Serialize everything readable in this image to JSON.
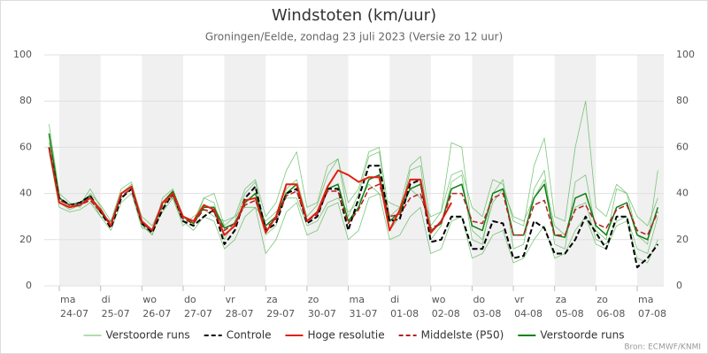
{
  "chart_data": {
    "type": "line",
    "title": "Windstoten (km/uur)",
    "subtitle": "Groningen/Eelde, zondag 23 juli 2023 (Versie zo 12 uur)",
    "source": "Bron: ECMWF/KNMI",
    "ylim": [
      0,
      100
    ],
    "yticks": [
      0,
      20,
      40,
      60,
      80,
      100
    ],
    "grid": true,
    "right_axis": true,
    "xlim": [
      0.635,
      15.643
    ],
    "xticks": [
      {
        "value": 1,
        "label": "ma\n24-07"
      },
      {
        "value": 2,
        "label": "di\n25-07"
      },
      {
        "value": 3,
        "label": "wo\n26-07"
      },
      {
        "value": 4,
        "label": "do\n27-07"
      },
      {
        "value": 5,
        "label": "vr\n28-07"
      },
      {
        "value": 6,
        "label": "za\n29-07"
      },
      {
        "value": 7,
        "label": "zo\n30-07"
      },
      {
        "value": 8,
        "label": "ma\n31-07"
      },
      {
        "value": 9,
        "label": "di\n01-08"
      },
      {
        "value": 10,
        "label": "wo\n02-08"
      },
      {
        "value": 11,
        "label": "do\n03-08"
      },
      {
        "value": 12,
        "label": "vr\n04-08"
      },
      {
        "value": 13,
        "label": "za\n05-08"
      },
      {
        "value": 14,
        "label": "zo\n06-08"
      },
      {
        "value": 15,
        "label": "ma\n07-08"
      }
    ],
    "x": [
      0.75,
      1,
      1.25,
      1.5,
      1.75,
      2,
      2.25,
      2.5,
      2.75,
      3,
      3.25,
      3.5,
      3.75,
      4,
      4.25,
      4.5,
      4.75,
      5,
      5.25,
      5.5,
      5.75,
      6,
      6.25,
      6.5,
      6.75,
      7,
      7.25,
      7.5,
      7.75,
      8,
      8.25,
      8.5,
      8.75,
      9,
      9.25,
      9.5,
      9.75,
      10,
      10.25,
      10.5,
      10.75,
      11,
      11.25,
      11.5,
      11.75,
      12,
      12.25,
      12.5,
      12.75,
      13,
      13.25,
      13.5,
      13.75,
      14,
      14.25,
      14.5,
      14.75,
      15,
      15.25,
      15.5
    ],
    "series": [
      {
        "name": "Verstoorde runs",
        "color": "#5cb85c",
        "width": 0.8,
        "dash": false,
        "runs": [
          [
            70,
            40,
            36,
            34,
            40,
            35,
            28,
            42,
            45,
            28,
            22,
            38,
            42,
            30,
            26,
            38,
            36,
            20,
            28,
            40,
            45,
            22,
            26,
            42,
            46,
            30,
            35,
            48,
            55,
            30,
            40,
            56,
            58,
            24,
            30,
            50,
            52,
            20,
            26,
            45,
            48,
            20,
            18,
            40,
            46,
            16,
            18,
            42,
            50,
            18,
            16,
            45,
            48,
            24,
            20,
            42,
            40,
            22,
            18,
            50
          ],
          [
            65,
            38,
            34,
            36,
            38,
            30,
            24,
            36,
            40,
            25,
            24,
            32,
            38,
            26,
            30,
            33,
            30,
            28,
            30,
            34,
            34,
            28,
            32,
            38,
            38,
            26,
            28,
            36,
            38,
            32,
            36,
            44,
            40,
            36,
            34,
            42,
            38,
            30,
            32,
            48,
            50,
            34,
            30,
            46,
            44,
            28,
            26,
            52,
            64,
            30,
            28,
            60,
            80,
            34,
            30,
            44,
            40,
            30,
            26,
            38
          ],
          [
            58,
            34,
            32,
            33,
            36,
            30,
            28,
            40,
            44,
            30,
            26,
            36,
            38,
            28,
            24,
            30,
            28,
            16,
            20,
            30,
            34,
            14,
            20,
            32,
            36,
            22,
            24,
            34,
            36,
            20,
            24,
            38,
            40,
            20,
            22,
            30,
            34,
            14,
            16,
            28,
            30,
            12,
            14,
            22,
            24,
            10,
            12,
            20,
            26,
            12,
            14,
            24,
            30,
            18,
            16,
            26,
            28,
            12,
            10,
            20
          ],
          [
            62,
            36,
            33,
            35,
            42,
            34,
            26,
            38,
            42,
            26,
            22,
            34,
            40,
            30,
            28,
            38,
            40,
            26,
            30,
            42,
            46,
            30,
            36,
            50,
            58,
            34,
            36,
            52,
            55,
            36,
            42,
            58,
            60,
            30,
            34,
            52,
            56,
            26,
            32,
            62,
            60,
            24,
            20,
            36,
            42,
            30,
            28,
            38,
            46,
            26,
            22,
            34,
            36,
            20,
            18,
            28,
            30,
            16,
            14,
            30
          ]
        ]
      },
      {
        "name": "Controle",
        "color": "#000000",
        "width": 2,
        "dash": true,
        "values": [
          60,
          38,
          35,
          36,
          39,
          32,
          25,
          38,
          42,
          27,
          23,
          33,
          40,
          28,
          26,
          30,
          33,
          18,
          24,
          38,
          43,
          24,
          27,
          40,
          42,
          27,
          30,
          42,
          42,
          24,
          38,
          52,
          52,
          28,
          29,
          44,
          46,
          19,
          20,
          30,
          30,
          16,
          16,
          28,
          27,
          12,
          13,
          28,
          25,
          14,
          14,
          20,
          30,
          23,
          16,
          30,
          30,
          8,
          12,
          18
        ]
      },
      {
        "name": "Hoge resolutie",
        "color": "#e0200f",
        "width": 2,
        "dash": false,
        "values": [
          60,
          36,
          34,
          35,
          38,
          33,
          26,
          40,
          43,
          28,
          24,
          36,
          40,
          30,
          28,
          35,
          33,
          22,
          26,
          37,
          38,
          23,
          30,
          44,
          44,
          28,
          32,
          43,
          50,
          48,
          45,
          47,
          47,
          24,
          33,
          46,
          46,
          23,
          28,
          36,
          null,
          null,
          null,
          null,
          null,
          null,
          null,
          null,
          null,
          null,
          null,
          null,
          null,
          null,
          null,
          null,
          null,
          null,
          null,
          null
        ]
      },
      {
        "name": "Middelste (P50)",
        "color": "#b22222",
        "width": 1.5,
        "dash": true,
        "values": [
          60,
          37,
          35,
          35,
          37,
          32,
          27,
          39,
          42,
          27,
          24,
          35,
          39,
          29,
          27,
          33,
          32,
          24,
          27,
          35,
          37,
          25,
          29,
          39,
          41,
          28,
          31,
          41,
          41,
          27,
          33,
          42,
          44,
          30,
          31,
          38,
          40,
          25,
          27,
          40,
          40,
          28,
          27,
          38,
          40,
          22,
          22,
          35,
          37,
          22,
          22,
          33,
          35,
          27,
          25,
          33,
          35,
          24,
          22,
          32
        ]
      },
      {
        "name": "Verstoorde runs",
        "color": "#108010",
        "width": 1.5,
        "dash": false,
        "values": [
          66,
          38,
          35,
          36,
          39,
          32,
          26,
          40,
          43,
          28,
          24,
          36,
          41,
          30,
          27,
          34,
          34,
          25,
          27,
          36,
          40,
          26,
          30,
          40,
          44,
          28,
          32,
          42,
          44,
          28,
          34,
          46,
          48,
          28,
          32,
          42,
          44,
          24,
          27,
          42,
          44,
          26,
          24,
          40,
          42,
          22,
          22,
          38,
          44,
          22,
          21,
          38,
          40,
          26,
          22,
          34,
          36,
          22,
          20,
          34
        ]
      }
    ]
  }
}
